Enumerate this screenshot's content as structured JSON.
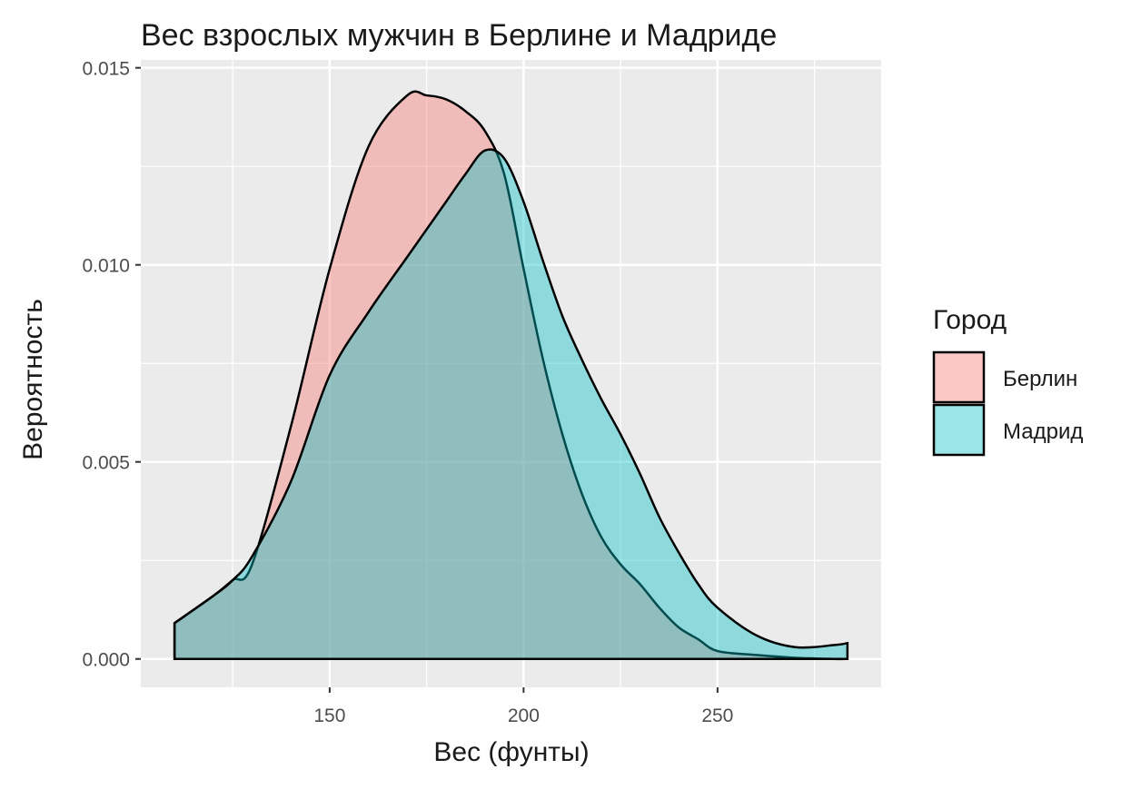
{
  "chart_data": {
    "type": "density",
    "title": "Вес взрослых мужчин в Берлине и Мадриде",
    "x_label": "Вес (фунты)",
    "y_label": "Вероятность",
    "legend_title": "Город",
    "legend_position": "right",
    "grid": true,
    "x": [
      110,
      120,
      125,
      130,
      140,
      150,
      160,
      170,
      175,
      180,
      185,
      190,
      195,
      200,
      205,
      210,
      215,
      220,
      225,
      230,
      235,
      240,
      245,
      250,
      260,
      270,
      280,
      283.5
    ],
    "series": [
      {
        "name": "Берлин",
        "color": "#F8766D",
        "values": [
          0.00091,
          0.0016,
          0.002,
          0.0024,
          0.0059,
          0.0099,
          0.013,
          0.0143,
          0.0143,
          0.0142,
          0.0139,
          0.0134,
          0.0123,
          0.0099,
          0.0076,
          0.0057,
          0.0042,
          0.0031,
          0.0024,
          0.0019,
          0.0013,
          0.0008,
          0.0005,
          0.0002,
          0.0001,
          3e-05,
          0,
          0
        ]
      },
      {
        "name": "Мадрид",
        "color": "#00BFC4",
        "values": [
          0.00091,
          0.0016,
          0.002,
          0.0026,
          0.0045,
          0.0072,
          0.0088,
          0.0102,
          0.0109,
          0.0116,
          0.0123,
          0.0129,
          0.0127,
          0.0116,
          0.0101,
          0.0087,
          0.0076,
          0.0066,
          0.0057,
          0.0047,
          0.0036,
          0.0027,
          0.0019,
          0.0013,
          0.0006,
          0.0003,
          0.00035,
          0.0004
        ]
      }
    ],
    "xlim": [
      101.3,
      292.2
    ],
    "xticks": [
      150,
      200,
      250
    ],
    "xminor": [
      125,
      175,
      225,
      275
    ],
    "ylim": [
      -0.00072,
      0.0152
    ],
    "yticks": [
      {
        "value": 0,
        "label": "0.000"
      },
      {
        "value": 0.005,
        "label": "0.005"
      },
      {
        "value": 0.01,
        "label": "0.010"
      },
      {
        "value": 0.015,
        "label": "0.015"
      }
    ],
    "yminor": [
      0.0025,
      0.0075,
      0.0125
    ]
  }
}
